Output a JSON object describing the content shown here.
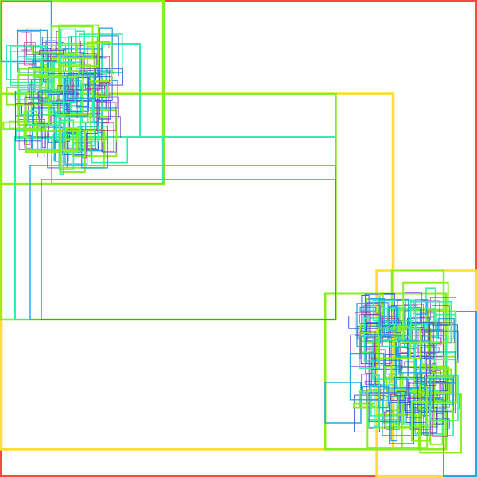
{
  "chart_data": {
    "type": "rectangles",
    "title": "",
    "xlabel": "",
    "ylabel": "",
    "palette": {
      "outer_frame": "#ff4444",
      "level_1": "#ffdd33",
      "level_2": "#88ee22",
      "level_3": "#33eeaa",
      "level_4": "#22aadd",
      "level_5": "#3366dd",
      "level_6": "#7733cc",
      "level_7": "#aa2299"
    },
    "legend": "none",
    "grid": false
  }
}
